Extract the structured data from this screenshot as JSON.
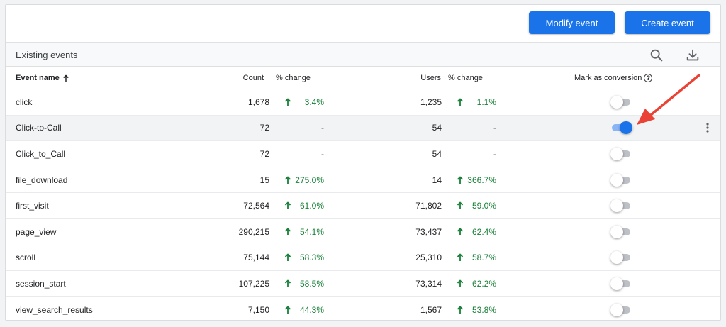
{
  "toolbar": {
    "modify_label": "Modify event",
    "create_label": "Create event"
  },
  "section": {
    "title": "Existing events"
  },
  "icons": {
    "search": "search-icon",
    "download": "download-icon",
    "sort": "arrow-up-icon",
    "help": "help-icon",
    "more": "more-vert-icon",
    "trend_up": "arrow-up-icon"
  },
  "columns": {
    "event_name": "Event name",
    "count": "Count",
    "count_change": "% change",
    "users": "Users",
    "users_change": "% change",
    "conversion": "Mark as conversion",
    "help": "?"
  },
  "colors": {
    "primary": "#1a73e8",
    "positive": "#188038",
    "annotation": "#ea4335"
  },
  "rows": [
    {
      "name": "click",
      "count": "1,678",
      "count_change": "3.4%",
      "users": "1,235",
      "users_change": "1.1%",
      "conversion": false
    },
    {
      "name": "Click-to-Call",
      "count": "72",
      "count_change": "-",
      "users": "54",
      "users_change": "-",
      "conversion": true
    },
    {
      "name": "Click_to_Call",
      "count": "72",
      "count_change": "-",
      "users": "54",
      "users_change": "-",
      "conversion": false
    },
    {
      "name": "file_download",
      "count": "15",
      "count_change": "275.0%",
      "users": "14",
      "users_change": "366.7%",
      "conversion": false
    },
    {
      "name": "first_visit",
      "count": "72,564",
      "count_change": "61.0%",
      "users": "71,802",
      "users_change": "59.0%",
      "conversion": false
    },
    {
      "name": "page_view",
      "count": "290,215",
      "count_change": "54.1%",
      "users": "73,437",
      "users_change": "62.4%",
      "conversion": false
    },
    {
      "name": "scroll",
      "count": "75,144",
      "count_change": "58.3%",
      "users": "25,310",
      "users_change": "58.7%",
      "conversion": false
    },
    {
      "name": "session_start",
      "count": "107,225",
      "count_change": "58.5%",
      "users": "73,314",
      "users_change": "62.2%",
      "conversion": false
    },
    {
      "name": "view_search_results",
      "count": "7,150",
      "count_change": "44.3%",
      "users": "1,567",
      "users_change": "53.8%",
      "conversion": false
    }
  ]
}
